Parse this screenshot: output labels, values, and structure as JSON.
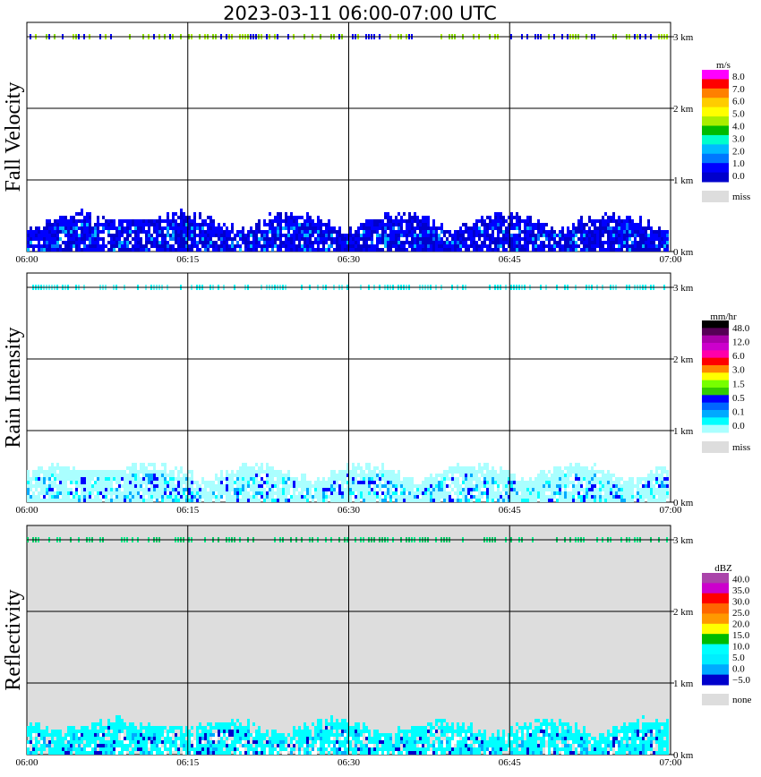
{
  "title": "2023-03-11   06:00-07:00 UTC",
  "x_ticks": [
    "06:00",
    "06:15",
    "06:30",
    "06:45",
    "07:00"
  ],
  "y_ticks": [
    "3 km",
    "2 km",
    "1 km",
    "0 km"
  ],
  "chart_data": [
    {
      "type": "heatmap",
      "ylabel": "Fall Velocity",
      "background": "#ffffff",
      "colorbar": {
        "unit": "m/s",
        "labels": [
          "8.0",
          "7.0",
          "6.0",
          "5.0",
          "4.0",
          "3.0",
          "2.0",
          "1.0",
          "0.0"
        ],
        "colors": [
          "#ff00ff",
          "#ff0000",
          "#ff8000",
          "#ffcc00",
          "#ffff00",
          "#aaee00",
          "#00bb00",
          "#00ffcc",
          "#00bbff",
          "#0077ff",
          "#0000ff",
          "#0000cc"
        ],
        "missing_label": "miss",
        "missing_color": "#dddddd"
      },
      "x_range": [
        "06:00",
        "07:00"
      ],
      "y_range_km": [
        0,
        3.2
      ],
      "echo_top_km": 0.55,
      "stripe_km": 3.0,
      "dominant_colors": [
        "#0000ff",
        "#0000cc",
        "#0077ff",
        "#00bbff"
      ],
      "stripe_colors": [
        "#aaee00",
        "#88dd00",
        "#0000ff"
      ]
    },
    {
      "type": "heatmap",
      "ylabel": "Rain Intensity",
      "background": "#ffffff",
      "colorbar": {
        "unit": "mm/hr",
        "labels": [
          "48.0",
          "12.0",
          "6.0",
          "3.0",
          "1.5",
          "0.5",
          "0.1",
          "0.0"
        ],
        "colors": [
          "#000000",
          "#550055",
          "#aa00aa",
          "#cc00cc",
          "#ff00aa",
          "#ff0000",
          "#ff8800",
          "#ffff00",
          "#77ff00",
          "#33cc00",
          "#0000ff",
          "#0066ff",
          "#00aaff",
          "#00ffff",
          "#aaffff"
        ],
        "missing_label": "miss",
        "missing_color": "#dddddd"
      },
      "x_range": [
        "06:00",
        "07:00"
      ],
      "y_range_km": [
        0,
        3.2
      ],
      "echo_top_km": 0.55,
      "stripe_km": 3.0,
      "dominant_colors": [
        "#aaffff",
        "#00ffff",
        "#00aaff",
        "#0000ff"
      ],
      "stripe_colors": [
        "#00ffff",
        "#66ffff"
      ]
    },
    {
      "type": "heatmap",
      "ylabel": "Reflectivity",
      "background": "#dddddd",
      "colorbar": {
        "unit": "dBZ",
        "labels": [
          "40.0",
          "35.0",
          "30.0",
          "25.0",
          "20.0",
          "15.0",
          "10.0",
          "5.0",
          "0.0",
          "−5.0"
        ],
        "colors": [
          "#aa44aa",
          "#cc00cc",
          "#ff0000",
          "#ff6600",
          "#ff9900",
          "#ffff00",
          "#00bb00",
          "#00ffff",
          "#00eeff",
          "#00aaff",
          "#0000cc"
        ],
        "missing_label": "none",
        "missing_color": "#dddddd"
      },
      "x_range": [
        "06:00",
        "07:00"
      ],
      "y_range_km": [
        0,
        3.2
      ],
      "echo_top_km": 0.5,
      "stripe_km": 3.0,
      "dominant_colors": [
        "#00ffff",
        "#00aaff",
        "#0000cc",
        "#ffffff"
      ],
      "stripe_colors": [
        "#00cc66",
        "#00ee88"
      ]
    }
  ]
}
